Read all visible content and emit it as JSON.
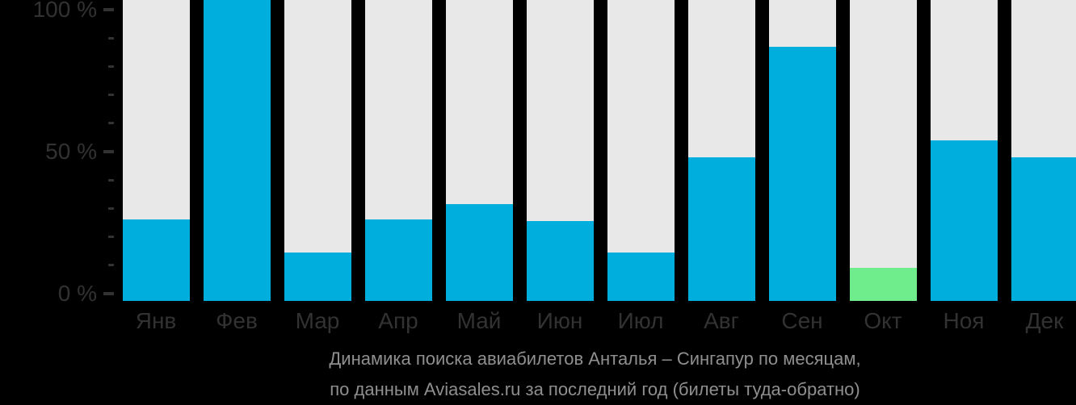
{
  "chart_data": {
    "type": "bar",
    "title": "Динамика поиска авиабилетов Анталья – Сингапур по месяцам,",
    "subtitle": "по данным Aviasales.ru за последний год (билеты туда-обратно)",
    "categories": [
      "Янв",
      "Фев",
      "Мар",
      "Апр",
      "Май",
      "Июн",
      "Июл",
      "Авг",
      "Сен",
      "Окт",
      "Ноя",
      "Дек"
    ],
    "values": [
      26,
      100,
      14.5,
      26,
      31.5,
      25.5,
      14.5,
      48,
      87,
      9,
      54,
      48
    ],
    "unit": "%",
    "ylim": [
      0,
      100
    ],
    "y_major_ticks": [
      {
        "value": 100,
        "label": "100 %"
      },
      {
        "value": 50,
        "label": "50 %"
      },
      {
        "value": 0,
        "label": "0 %"
      }
    ],
    "y_minor_tick_values": [
      90,
      80,
      70,
      60,
      40,
      30,
      20,
      10
    ],
    "grid": false,
    "legend": false,
    "highlight_index": 9,
    "clipped_at_top_index": 1,
    "colors": {
      "background": "#000000",
      "bar": "#00aedd",
      "highlight_bar": "#6fed8c",
      "column_track": "#e8e8e8",
      "axis_label": "#323232",
      "tick": "#323232",
      "caption_text": "#8f8f8f"
    }
  }
}
